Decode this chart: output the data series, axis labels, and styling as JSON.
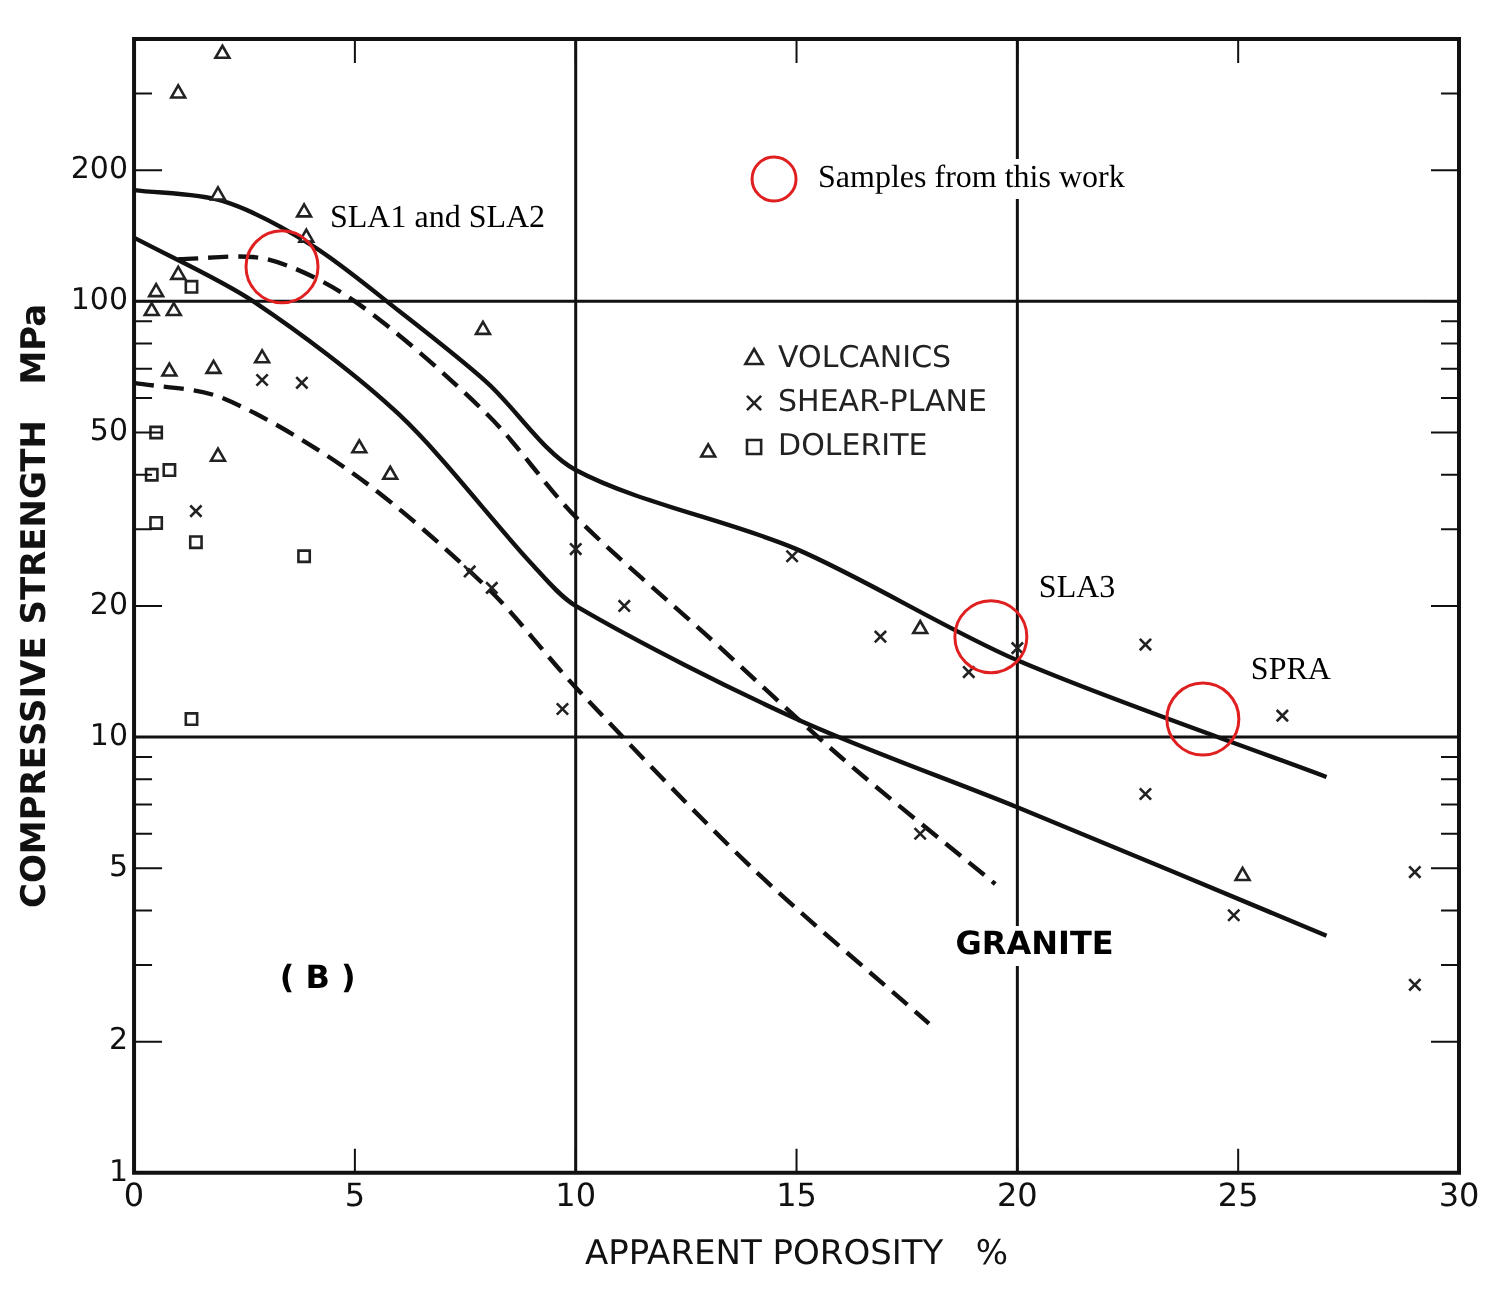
{
  "chart_data": {
    "type": "scatter",
    "xlabel": "APPARENT POROSITY   %",
    "ylabel": "COMPRESSIVE STRENGTH   MPa",
    "series": [
      {
        "name": "Samples from this work",
        "marker": "circle",
        "color": "#e02020",
        "x": [
          3.35,
          19.4,
          24.2
        ],
        "values": [
          120,
          17,
          11
        ]
      },
      {
        "name": "VOLCANICS",
        "marker": "triangle",
        "color": "#222222",
        "x": [
          1.0,
          2.0,
          1.9,
          3.85,
          3.9,
          1.0,
          0.5,
          0.4,
          0.9,
          7.9,
          0.8,
          1.8,
          2.9,
          1.9,
          5.1,
          5.8,
          13.0,
          17.8,
          25.1
        ],
        "values": [
          300,
          370,
          175,
          160,
          140,
          115,
          105,
          95,
          95,
          86,
          69,
          70,
          74,
          44,
          46,
          40,
          45,
          17.7,
          4.8
        ]
      },
      {
        "name": "SHEAR-PLANE",
        "marker": "cross",
        "color": "#222222",
        "x": [
          2.9,
          3.8,
          1.4,
          7.6,
          8.1,
          10.0,
          11.1,
          9.7,
          14.9,
          16.9,
          17.8,
          18.9,
          20.0,
          22.9,
          26.0,
          22.9,
          24.9,
          29.0,
          29.0
        ],
        "values": [
          66,
          65,
          33,
          24,
          22,
          27,
          20,
          11.6,
          26,
          17,
          6,
          14.1,
          16,
          16.3,
          11.2,
          7.4,
          3.9,
          4.9,
          2.7
        ]
      },
      {
        "name": "DOLERITE",
        "marker": "square",
        "color": "#222222",
        "x": [
          0.5,
          0.4,
          0.8,
          0.5,
          1.4,
          3.85,
          1.3,
          1.3
        ],
        "values": [
          50,
          40,
          41,
          31,
          28,
          26,
          11,
          108
        ]
      },
      {
        "type": "line",
        "line_style": "solid",
        "color": "#111111",
        "x": [
          0,
          2,
          4,
          6,
          8,
          10,
          15,
          20,
          27
        ],
        "values": [
          180,
          170,
          135,
          95,
          65,
          41,
          27,
          15,
          8.1
        ]
      },
      {
        "type": "line",
        "line_style": "solid",
        "color": "#111111",
        "x": [
          0,
          2.7,
          6,
          9,
          10,
          15,
          20,
          27
        ],
        "values": [
          140,
          100,
          55,
          25,
          20,
          11,
          6.9,
          3.5
        ]
      },
      {
        "type": "line",
        "line_style": "dashed",
        "color": "#111111",
        "x": [
          1,
          3,
          5,
          8,
          10,
          13,
          16,
          19.5
        ],
        "values": [
          125,
          125,
          100,
          55,
          32,
          17,
          9,
          4.6
        ]
      },
      {
        "type": "line",
        "line_style": "dashed",
        "color": "#111111",
        "x": [
          0,
          2,
          5,
          8,
          10,
          14,
          18
        ],
        "values": [
          65,
          60,
          40,
          22,
          13,
          5,
          2.2
        ]
      }
    ],
    "xlim": [
      0,
      30
    ],
    "xticks": [
      0,
      5,
      10,
      15,
      20,
      25,
      30
    ],
    "ylim": [
      1,
      400
    ],
    "log": "y",
    "yticks": [
      1,
      2,
      {
        "value": 3,
        "label": null
      },
      {
        "value": 4,
        "label": null
      },
      5,
      {
        "value": 6,
        "label": null
      },
      {
        "value": 7,
        "label": null
      },
      {
        "value": 8,
        "label": null
      },
      {
        "value": 9,
        "label": null
      },
      10,
      20,
      {
        "value": 30,
        "label": null
      },
      {
        "value": 40,
        "label": null
      },
      50,
      {
        "value": 60,
        "label": null
      },
      {
        "value": 70,
        "label": null
      },
      {
        "value": 80,
        "label": null
      },
      {
        "value": 90,
        "label": null
      },
      100,
      200,
      {
        "value": 300,
        "label": null
      },
      {
        "value": 400,
        "label": null
      }
    ],
    "ref_lines": [
      {
        "axis": "x",
        "value": 10,
        "color": "#111111"
      },
      {
        "axis": "x",
        "value": 20,
        "color": "#111111"
      },
      {
        "axis": "y",
        "value": 10,
        "color": "#111111"
      },
      {
        "axis": "y",
        "value": 100,
        "color": "#111111"
      }
    ],
    "grid": false,
    "legend": "top right",
    "annotations": [
      {
        "text": "SLA1 and SLA2",
        "x": 3.35,
        "y": 120
      },
      {
        "text": "SLA3",
        "x": 19.4,
        "y": 17
      },
      {
        "text": "SPRA",
        "x": 24.2,
        "y": 11
      },
      "GRANITE",
      "( B )"
    ]
  }
}
